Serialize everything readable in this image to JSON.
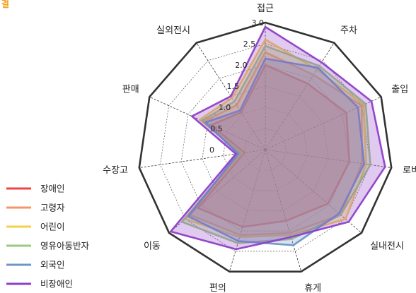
{
  "corner_label": "결",
  "chart_data": {
    "type": "radar",
    "categories": [
      "접근",
      "주차",
      "출입",
      "로비",
      "실내전시",
      "휴게",
      "편의",
      "이동",
      "수장고",
      "판매",
      "실외전시"
    ],
    "rlim": [
      0,
      3.0
    ],
    "ticks": [
      0,
      0.5,
      1.0,
      1.5,
      2.0,
      2.5,
      3.0
    ],
    "tick_labels": [
      "0",
      "0.5",
      "1.0",
      "1.5",
      "2.0",
      "2.5",
      "3.0"
    ],
    "legend_position": "left",
    "series": [
      {
        "name": "장애인",
        "color": "#ef4444",
        "values": [
          2.0,
          1.85,
          2.1,
          2.0,
          1.95,
          1.75,
          1.9,
          2.1,
          0.5,
          1.4,
          1.05
        ]
      },
      {
        "name": "고령자",
        "color": "#f6956b",
        "values": [
          2.3,
          2.1,
          2.5,
          2.3,
          2.35,
          2.05,
          2.1,
          2.35,
          0.55,
          1.6,
          1.25
        ]
      },
      {
        "name": "어린이",
        "color": "#f5d04a",
        "values": [
          2.6,
          2.25,
          2.55,
          2.4,
          2.5,
          2.1,
          2.15,
          2.5,
          0.55,
          1.7,
          1.45
        ]
      },
      {
        "name": "영유아동반자",
        "color": "#9bc87e",
        "values": [
          2.45,
          2.35,
          2.6,
          2.5,
          2.35,
          2.2,
          2.3,
          2.6,
          0.6,
          1.65,
          1.35
        ]
      },
      {
        "name": "외국인",
        "color": "#6f94c8",
        "values": [
          2.15,
          2.3,
          2.4,
          2.35,
          2.3,
          2.35,
          2.25,
          2.4,
          0.65,
          1.55,
          1.1
        ]
      },
      {
        "name": "비장애인",
        "color": "#8e3fc7",
        "values": [
          2.9,
          2.45,
          2.75,
          2.85,
          2.6,
          2.15,
          2.45,
          2.95,
          0.7,
          1.9,
          1.5
        ]
      }
    ]
  }
}
